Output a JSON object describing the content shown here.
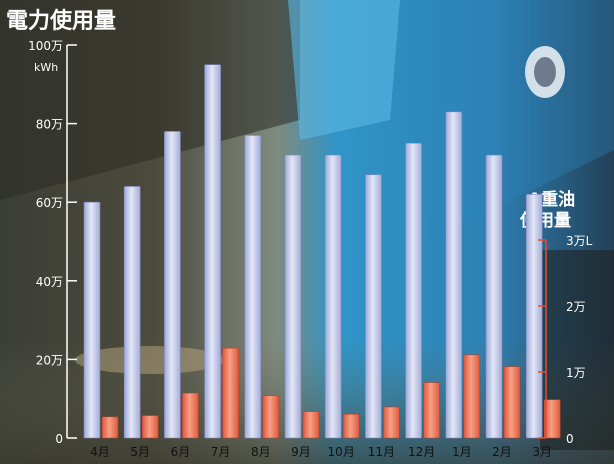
{
  "chart_data": {
    "type": "bar",
    "title": "電力使用量",
    "title_right": "A重油使用量",
    "categories": [
      "4月",
      "5月",
      "6月",
      "7月",
      "8月",
      "9月",
      "10月",
      "11月",
      "12月",
      "1月",
      "2月",
      "3月"
    ],
    "left_axis": {
      "name": "電力使用量",
      "unit_line1": "万",
      "unit_line2": "kWh",
      "ticks": [
        "0",
        "20万",
        "40万",
        "60万",
        "80万",
        "100万"
      ],
      "tick_values": [
        0,
        20,
        40,
        60,
        80,
        100
      ],
      "ylim": [
        0,
        100
      ]
    },
    "right_axis": {
      "name": "A重油使用量",
      "unit": "万L",
      "ticks": [
        "0",
        "1万",
        "2万",
        "3万L"
      ],
      "tick_values": [
        0,
        1,
        2,
        3
      ],
      "ylim": [
        0,
        3
      ]
    },
    "series": [
      {
        "name": "電力使用量",
        "axis": "left",
        "color": "#bfc7ea",
        "values": [
          60,
          64,
          78,
          95,
          77,
          72,
          72,
          67,
          75,
          83,
          72,
          62
        ]
      },
      {
        "name": "A重油使用量",
        "axis": "right",
        "color": "#f07a5d",
        "values": [
          0.32,
          0.34,
          0.68,
          1.36,
          0.64,
          0.4,
          0.36,
          0.47,
          0.84,
          1.26,
          1.08,
          0.58
        ]
      }
    ],
    "grid": false,
    "legend": "none"
  }
}
